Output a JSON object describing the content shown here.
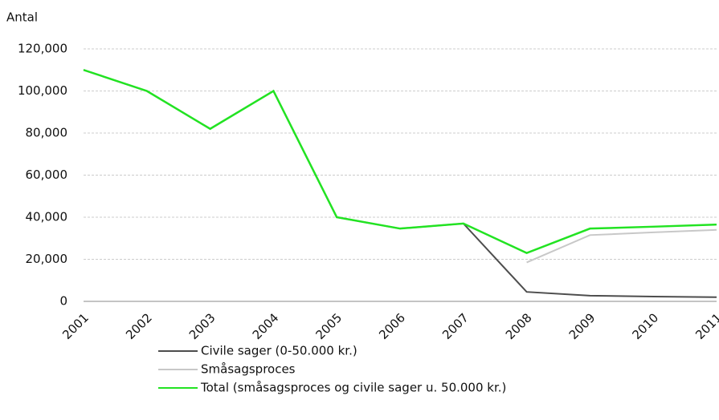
{
  "chart_data": {
    "type": "line",
    "y_axis_label": "Antal",
    "categories": [
      "2001",
      "2002",
      "2003",
      "2004",
      "2005",
      "2006",
      "2007",
      "2008",
      "2009",
      "2010",
      "2011"
    ],
    "series": [
      {
        "name": "Civile sager (0-50.000 kr.)",
        "color": "#4d4d4d",
        "values": [
          110000,
          100000,
          82000,
          100000,
          40000,
          34600,
          37000,
          4500,
          2700,
          2300,
          2000
        ]
      },
      {
        "name": "Småsagsproces",
        "color": "#c8c8c8",
        "values": [
          null,
          null,
          null,
          null,
          null,
          null,
          null,
          18500,
          31500,
          32800,
          34000
        ]
      },
      {
        "name": "Total (småsagsproces og civile sager u. 50.000 kr.)",
        "color": "#22e322",
        "values": [
          110000,
          100000,
          82000,
          100000,
          40000,
          34600,
          37000,
          23000,
          34600,
          35500,
          36500
        ]
      }
    ],
    "ylim": [
      0,
      120000
    ],
    "yticks": [
      {
        "value": 0,
        "label": "0"
      },
      {
        "value": 20000,
        "label": "20,000"
      },
      {
        "value": 40000,
        "label": "40,000"
      },
      {
        "value": 60000,
        "label": "60,000"
      },
      {
        "value": 80000,
        "label": "80,000"
      },
      {
        "value": 100000,
        "label": "100,000"
      },
      {
        "value": 120000,
        "label": "120,000"
      }
    ],
    "grid": true
  }
}
